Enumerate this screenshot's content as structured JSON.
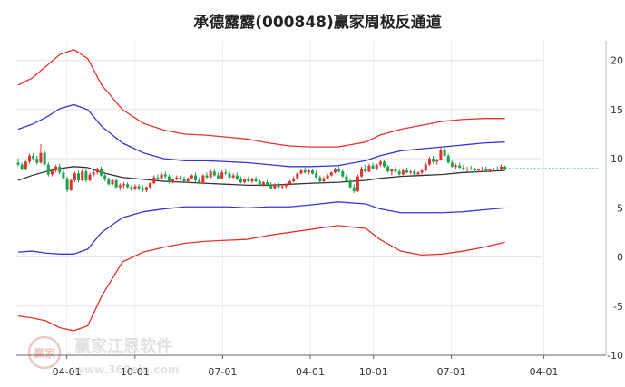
{
  "chart_data": {
    "type": "candlestick_channel",
    "title": "承德露露(000848)赢家周极反通道",
    "xlabel": "",
    "ylabel": "",
    "ylim": [
      -10,
      22
    ],
    "y_ticks": [
      20,
      15,
      10,
      5,
      0,
      -5,
      -10
    ],
    "x_ticks": [
      "04-01",
      "10-01",
      "07-01",
      "04-01",
      "10-01",
      "07-01",
      "04-01"
    ],
    "grid": true,
    "last_close": 9.0,
    "series": [
      {
        "color": "#e8312b",
        "x": [
          0,
          4,
          8,
          12,
          16,
          20,
          24,
          30,
          36,
          42,
          48,
          54,
          60,
          66,
          72,
          78,
          84,
          92,
          100,
          104,
          110,
          116,
          122,
          128,
          134,
          140
        ],
        "values": [
          17.5,
          18.2,
          19.4,
          20.6,
          21.1,
          20.2,
          17.5,
          15.0,
          13.6,
          12.9,
          12.5,
          12.4,
          12.2,
          12.0,
          11.6,
          11.3,
          11.2,
          11.2,
          11.7,
          12.4,
          13.0,
          13.4,
          13.8,
          14.0,
          14.1,
          14.1
        ]
      },
      {
        "color": "#3636d6",
        "x": [
          0,
          4,
          8,
          12,
          16,
          20,
          24,
          30,
          36,
          42,
          48,
          54,
          60,
          66,
          72,
          78,
          84,
          92,
          100,
          104,
          110,
          116,
          122,
          128,
          134,
          140
        ],
        "values": [
          13.0,
          13.5,
          14.2,
          15.1,
          15.5,
          15.0,
          13.3,
          11.6,
          10.6,
          10.0,
          9.8,
          9.8,
          9.7,
          9.6,
          9.4,
          9.2,
          9.2,
          9.3,
          9.8,
          10.3,
          10.8,
          11.0,
          11.2,
          11.4,
          11.6,
          11.7
        ]
      },
      {
        "color": "#3636d6",
        "x": [
          0,
          4,
          8,
          12,
          16,
          20,
          24,
          30,
          36,
          42,
          48,
          54,
          60,
          66,
          72,
          78,
          84,
          92,
          100,
          104,
          110,
          116,
          122,
          128,
          134,
          140
        ],
        "values": [
          0.5,
          0.6,
          0.4,
          0.3,
          0.3,
          0.8,
          2.5,
          4.0,
          4.6,
          4.9,
          5.1,
          5.1,
          5.1,
          5.0,
          5.1,
          5.1,
          5.3,
          5.6,
          5.4,
          4.9,
          4.5,
          4.5,
          4.5,
          4.6,
          4.8,
          5.0
        ]
      },
      {
        "color": "#e8312b",
        "x": [
          0,
          4,
          8,
          12,
          16,
          20,
          24,
          30,
          36,
          42,
          48,
          54,
          60,
          66,
          72,
          78,
          84,
          92,
          100,
          104,
          110,
          116,
          122,
          128,
          134,
          140
        ],
        "values": [
          -6.0,
          -6.2,
          -6.5,
          -7.2,
          -7.5,
          -7.0,
          -4.0,
          -0.5,
          0.5,
          1.0,
          1.4,
          1.6,
          1.7,
          1.8,
          2.2,
          2.5,
          2.8,
          3.2,
          2.9,
          1.8,
          0.6,
          0.2,
          0.3,
          0.6,
          1.0,
          1.5
        ]
      },
      {
        "color": "#333333",
        "x": [
          0,
          4,
          8,
          12,
          16,
          20,
          24,
          30,
          36,
          42,
          48,
          54,
          60,
          66,
          72,
          78,
          84,
          92,
          100,
          104,
          110,
          116,
          122,
          128,
          134,
          140
        ],
        "values": [
          7.8,
          8.3,
          8.7,
          9.0,
          9.2,
          9.1,
          8.6,
          8.1,
          7.9,
          7.7,
          7.6,
          7.5,
          7.4,
          7.3,
          7.3,
          7.4,
          7.5,
          7.6,
          7.8,
          8.0,
          8.2,
          8.3,
          8.4,
          8.6,
          8.7,
          8.8
        ]
      }
    ],
    "candles": [
      [
        9.6,
        10.0,
        9.2,
        9.4
      ],
      [
        9.4,
        9.6,
        8.8,
        8.9
      ],
      [
        8.9,
        9.8,
        8.8,
        9.7
      ],
      [
        9.7,
        10.5,
        9.5,
        10.3
      ],
      [
        10.3,
        10.6,
        9.8,
        10.0
      ],
      [
        10.0,
        10.3,
        9.4,
        9.6
      ],
      [
        9.6,
        11.5,
        9.5,
        10.6
      ],
      [
        10.6,
        10.8,
        9.3,
        9.4
      ],
      [
        9.4,
        9.6,
        8.2,
        8.4
      ],
      [
        8.4,
        9.0,
        8.2,
        8.8
      ],
      [
        8.8,
        9.4,
        8.6,
        9.2
      ],
      [
        9.2,
        9.5,
        8.4,
        8.6
      ],
      [
        8.6,
        8.9,
        7.9,
        8.0
      ],
      [
        8.0,
        8.2,
        6.6,
        6.8
      ],
      [
        6.8,
        8.0,
        6.7,
        7.8
      ],
      [
        7.8,
        8.7,
        7.6,
        8.5
      ],
      [
        8.5,
        8.8,
        7.6,
        7.8
      ],
      [
        7.8,
        8.9,
        7.7,
        8.7
      ],
      [
        8.7,
        9.0,
        7.6,
        7.8
      ],
      [
        7.8,
        8.6,
        7.7,
        8.4
      ],
      [
        8.4,
        8.8,
        8.2,
        8.6
      ],
      [
        8.6,
        9.1,
        8.4,
        8.9
      ],
      [
        8.9,
        9.2,
        8.2,
        8.3
      ],
      [
        8.3,
        8.6,
        7.7,
        7.9
      ],
      [
        7.9,
        8.1,
        7.3,
        7.4
      ],
      [
        7.4,
        7.9,
        7.3,
        7.8
      ],
      [
        7.8,
        8.0,
        7.0,
        7.1
      ],
      [
        7.1,
        7.5,
        6.8,
        7.3
      ],
      [
        7.3,
        7.6,
        7.0,
        7.4
      ],
      [
        7.4,
        7.6,
        7.0,
        7.1
      ],
      [
        7.1,
        7.3,
        6.7,
        6.9
      ],
      [
        6.9,
        7.4,
        6.8,
        7.2
      ],
      [
        7.2,
        7.4,
        6.8,
        7.0
      ],
      [
        7.0,
        7.3,
        6.6,
        6.8
      ],
      [
        6.8,
        7.2,
        6.6,
        7.1
      ],
      [
        7.1,
        7.6,
        7.0,
        7.5
      ],
      [
        7.5,
        8.3,
        7.4,
        8.1
      ],
      [
        8.1,
        8.4,
        7.8,
        8.0
      ],
      [
        8.0,
        8.6,
        7.9,
        8.4
      ],
      [
        8.4,
        8.7,
        8.0,
        8.2
      ],
      [
        8.2,
        8.4,
        7.5,
        7.6
      ],
      [
        7.6,
        8.0,
        7.5,
        7.9
      ],
      [
        7.9,
        8.3,
        7.8,
        8.1
      ],
      [
        8.1,
        8.3,
        7.8,
        7.9
      ],
      [
        7.9,
        8.2,
        7.6,
        7.7
      ],
      [
        7.7,
        8.1,
        7.6,
        8.0
      ],
      [
        8.0,
        8.4,
        7.9,
        8.3
      ],
      [
        8.3,
        8.6,
        7.6,
        7.8
      ],
      [
        7.8,
        8.1,
        7.4,
        7.5
      ],
      [
        7.5,
        8.4,
        7.4,
        8.3
      ],
      [
        8.3,
        8.6,
        8.0,
        8.1
      ],
      [
        8.1,
        8.9,
        8.0,
        8.7
      ],
      [
        8.7,
        9.0,
        8.2,
        8.3
      ],
      [
        8.3,
        8.6,
        7.9,
        8.0
      ],
      [
        8.0,
        8.8,
        7.9,
        8.6
      ],
      [
        8.6,
        8.9,
        8.3,
        8.5
      ],
      [
        8.5,
        8.7,
        8.0,
        8.1
      ],
      [
        8.1,
        8.5,
        8.0,
        8.3
      ],
      [
        8.3,
        8.6,
        7.8,
        7.9
      ],
      [
        7.9,
        8.2,
        7.5,
        7.6
      ],
      [
        7.6,
        8.0,
        7.5,
        7.9
      ],
      [
        7.9,
        8.2,
        7.6,
        7.7
      ],
      [
        7.7,
        8.1,
        7.5,
        7.9
      ],
      [
        7.9,
        8.2,
        7.6,
        7.7
      ],
      [
        7.7,
        7.9,
        7.2,
        7.3
      ],
      [
        7.3,
        7.7,
        7.2,
        7.6
      ],
      [
        7.6,
        7.8,
        7.2,
        7.3
      ],
      [
        7.3,
        7.6,
        6.9,
        7.0
      ],
      [
        7.0,
        7.5,
        6.9,
        7.4
      ],
      [
        7.4,
        7.6,
        7.0,
        7.1
      ],
      [
        7.1,
        7.4,
        6.9,
        7.2
      ],
      [
        7.2,
        7.5,
        7.0,
        7.4
      ],
      [
        7.4,
        7.8,
        7.3,
        7.7
      ],
      [
        7.7,
        8.2,
        7.6,
        8.0
      ],
      [
        8.0,
        8.6,
        7.9,
        8.5
      ],
      [
        8.5,
        9.0,
        8.4,
        8.8
      ],
      [
        8.8,
        9.1,
        8.5,
        8.6
      ],
      [
        8.6,
        8.9,
        8.4,
        8.8
      ],
      [
        8.8,
        9.0,
        8.4,
        8.5
      ],
      [
        8.5,
        8.8,
        8.0,
        8.1
      ],
      [
        8.1,
        8.3,
        7.6,
        7.7
      ],
      [
        7.7,
        8.2,
        7.6,
        8.0
      ],
      [
        8.0,
        8.5,
        7.9,
        8.3
      ],
      [
        8.3,
        8.7,
        8.2,
        8.6
      ],
      [
        8.6,
        9.1,
        8.5,
        8.9
      ],
      [
        8.9,
        9.2,
        8.6,
        8.7
      ],
      [
        8.7,
        8.9,
        8.1,
        8.2
      ],
      [
        8.2,
        8.4,
        7.6,
        7.7
      ],
      [
        7.7,
        8.0,
        7.0,
        7.1
      ],
      [
        7.1,
        7.4,
        6.5,
        6.7
      ],
      [
        6.7,
        8.4,
        6.6,
        8.2
      ],
      [
        8.2,
        9.2,
        8.1,
        9.0
      ],
      [
        9.0,
        9.4,
        8.6,
        8.7
      ],
      [
        8.7,
        9.5,
        8.6,
        9.3
      ],
      [
        9.3,
        9.6,
        8.9,
        9.0
      ],
      [
        9.0,
        9.5,
        8.8,
        9.4
      ],
      [
        9.4,
        9.9,
        9.2,
        9.7
      ],
      [
        9.7,
        9.9,
        9.1,
        9.2
      ],
      [
        9.2,
        9.4,
        8.6,
        8.7
      ],
      [
        8.7,
        9.0,
        8.3,
        8.9
      ],
      [
        8.9,
        9.2,
        8.6,
        8.7
      ],
      [
        8.7,
        8.9,
        8.3,
        8.4
      ],
      [
        8.4,
        8.9,
        8.3,
        8.8
      ],
      [
        8.8,
        9.1,
        8.5,
        8.6
      ],
      [
        8.6,
        8.8,
        8.4,
        8.7
      ],
      [
        8.7,
        8.9,
        8.3,
        8.4
      ],
      [
        8.4,
        8.7,
        8.2,
        8.6
      ],
      [
        8.6,
        8.9,
        8.4,
        8.8
      ],
      [
        8.8,
        9.6,
        8.7,
        9.4
      ],
      [
        9.4,
        10.2,
        9.3,
        10.0
      ],
      [
        10.0,
        10.3,
        9.5,
        9.7
      ],
      [
        9.7,
        10.0,
        9.4,
        9.9
      ],
      [
        9.9,
        11.2,
        9.8,
        10.9
      ],
      [
        10.9,
        11.3,
        10.2,
        10.3
      ],
      [
        10.3,
        10.5,
        9.5,
        9.6
      ],
      [
        9.6,
        9.8,
        9.1,
        9.2
      ],
      [
        9.2,
        9.5,
        8.9,
        9.3
      ],
      [
        9.3,
        9.6,
        9.0,
        9.1
      ],
      [
        9.1,
        9.4,
        8.8,
        8.9
      ],
      [
        8.9,
        9.2,
        8.7,
        9.0
      ],
      [
        9.0,
        9.3,
        8.8,
        8.9
      ],
      [
        8.9,
        9.1,
        8.6,
        8.8
      ],
      [
        8.8,
        9.0,
        8.6,
        8.9
      ],
      [
        8.9,
        9.2,
        8.7,
        9.0
      ],
      [
        9.0,
        9.2,
        8.7,
        8.8
      ],
      [
        8.8,
        9.0,
        8.6,
        8.9
      ],
      [
        8.9,
        9.1,
        8.7,
        9.0
      ],
      [
        9.0,
        9.2,
        8.8,
        8.9
      ],
      [
        8.9,
        9.4,
        8.8,
        9.2
      ],
      [
        9.2,
        9.3,
        8.8,
        9.0
      ]
    ]
  },
  "watermark": {
    "logo_text": "赢家",
    "brand": "赢家江恩软件",
    "url": "www.360ejn.com"
  }
}
